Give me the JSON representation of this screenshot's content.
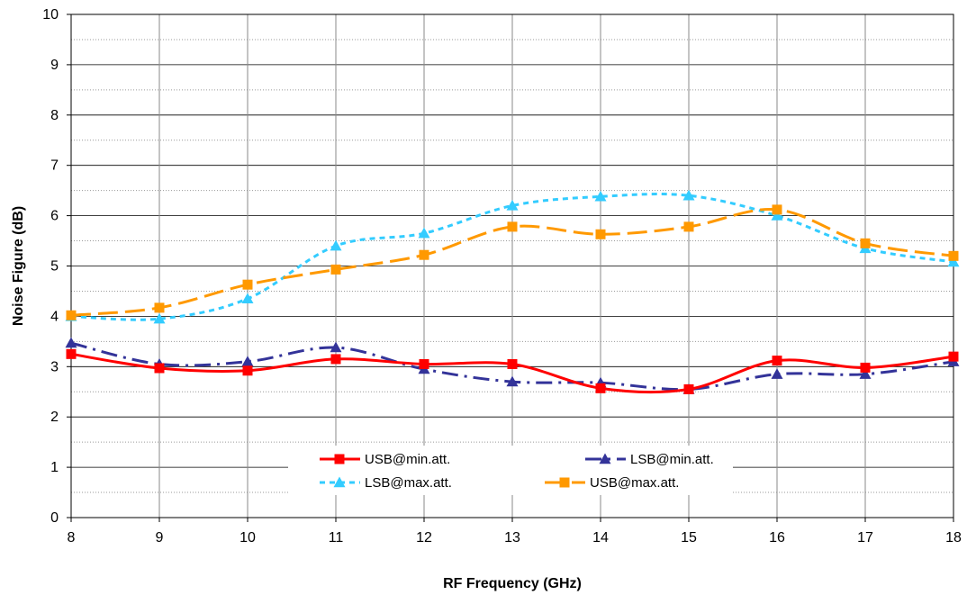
{
  "chart_data": {
    "type": "line",
    "xlabel": "RF Frequency (GHz)",
    "ylabel": "Noise Figure  (dB)",
    "xlim": [
      8,
      18
    ],
    "ylim": [
      0,
      10
    ],
    "x_ticks": [
      8,
      9,
      10,
      11,
      12,
      13,
      14,
      15,
      16,
      17,
      18
    ],
    "y_ticks": [
      0,
      1,
      2,
      3,
      4,
      5,
      6,
      7,
      8,
      9,
      10
    ],
    "grid": true,
    "minor_grid_y": true,
    "legend_position": "bottom-center",
    "x": [
      8,
      9,
      10,
      11,
      12,
      13,
      14,
      15,
      16,
      17,
      18
    ],
    "series": [
      {
        "name": "USB@min.att.",
        "color": "#ff0000",
        "marker": "square",
        "dash": "solid",
        "values": [
          3.25,
          2.97,
          2.92,
          3.15,
          3.05,
          3.05,
          2.57,
          2.55,
          3.12,
          2.98,
          3.2
        ]
      },
      {
        "name": "LSB@min.att.",
        "color": "#333399",
        "marker": "triangle",
        "dash": "dashdot",
        "values": [
          3.47,
          3.05,
          3.1,
          3.38,
          2.95,
          2.7,
          2.68,
          2.55,
          2.85,
          2.85,
          3.1
        ]
      },
      {
        "name": "LSB@max.att.",
        "color": "#33ccff",
        "marker": "triangle",
        "dash": "dotted",
        "values": [
          4.0,
          3.95,
          4.35,
          5.4,
          5.65,
          6.2,
          6.38,
          6.4,
          6.0,
          5.35,
          5.08
        ]
      },
      {
        "name": "USB@max.att.",
        "color": "#ff9900",
        "marker": "square",
        "dash": "longdash",
        "values": [
          4.02,
          4.17,
          4.63,
          4.93,
          5.22,
          5.78,
          5.63,
          5.78,
          6.12,
          5.45,
          5.2
        ]
      }
    ],
    "legend_order": [
      0,
      1,
      2,
      3
    ]
  }
}
